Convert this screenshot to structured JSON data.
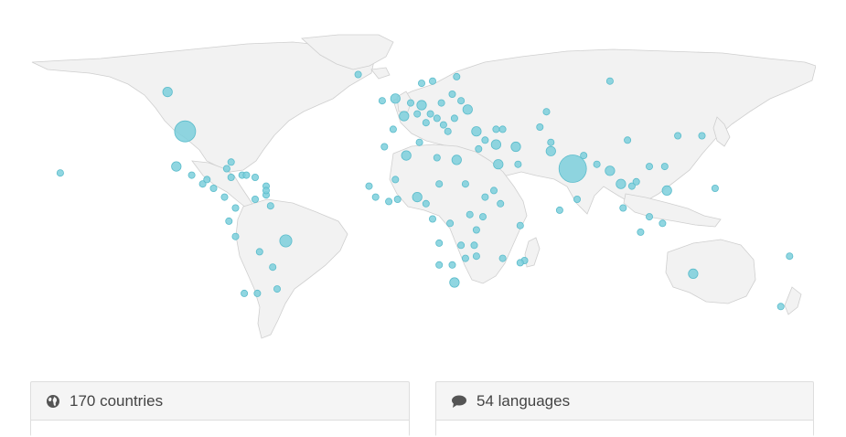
{
  "stats": {
    "countries_label": "170 countries",
    "languages_label": "54 languages"
  },
  "icons": {
    "countries": "globe-icon",
    "languages": "speech-bubble-icon"
  },
  "colors": {
    "marker_fill": "#7ccfdc",
    "marker_stroke": "#5bbccb",
    "land": "#f2f2f2",
    "panel_bg": "#f5f5f5",
    "text": "#444444"
  },
  "map_markers": [
    {
      "lon": -98,
      "lat": 39,
      "size": "xl"
    },
    {
      "lon": 79,
      "lat": 22,
      "size": "xxl"
    },
    {
      "lon": -106,
      "lat": 57,
      "size": "m"
    },
    {
      "lon": -102,
      "lat": 23,
      "size": "m"
    },
    {
      "lon": -52,
      "lat": -11,
      "size": "l"
    },
    {
      "lon": 134,
      "lat": -26,
      "size": "m"
    },
    {
      "lon": 96,
      "lat": 62,
      "size": "s"
    },
    {
      "lon": 26,
      "lat": 26,
      "size": "m"
    },
    {
      "lon": 53,
      "lat": 32,
      "size": "m"
    },
    {
      "lon": 2,
      "lat": 46,
      "size": "m"
    },
    {
      "lon": -3,
      "lat": 40,
      "size": "s"
    },
    {
      "lon": 10,
      "lat": 51,
      "size": "m"
    },
    {
      "lon": 31,
      "lat": 49,
      "size": "m"
    },
    {
      "lon": 19,
      "lat": 52,
      "size": "s"
    },
    {
      "lon": -8,
      "lat": 53,
      "size": "s"
    },
    {
      "lon": -2,
      "lat": 54,
      "size": "m"
    },
    {
      "lon": 15,
      "lat": 62,
      "size": "s"
    },
    {
      "lon": 26,
      "lat": 64,
      "size": "s"
    },
    {
      "lon": 10,
      "lat": 61,
      "size": "s"
    },
    {
      "lon": 12,
      "lat": 43,
      "size": "s"
    },
    {
      "lon": 22,
      "lat": 39,
      "size": "s"
    },
    {
      "lon": 35,
      "lat": 39,
      "size": "m"
    },
    {
      "lon": 25,
      "lat": 45,
      "size": "s"
    },
    {
      "lon": 17,
      "lat": 45,
      "size": "s"
    },
    {
      "lon": 20,
      "lat": 42,
      "size": "s"
    },
    {
      "lon": 44,
      "lat": 33,
      "size": "m"
    },
    {
      "lon": 39,
      "lat": 35,
      "size": "s"
    },
    {
      "lon": 36,
      "lat": 31,
      "size": "s"
    },
    {
      "lon": 45,
      "lat": 24,
      "size": "m"
    },
    {
      "lon": 54,
      "lat": 24,
      "size": "s"
    },
    {
      "lon": 67,
      "lat": 48,
      "size": "s"
    },
    {
      "lon": 64,
      "lat": 41,
      "size": "s"
    },
    {
      "lon": 69,
      "lat": 34,
      "size": "s"
    },
    {
      "lon": 69,
      "lat": 30,
      "size": "m"
    },
    {
      "lon": 84,
      "lat": 28,
      "size": "s"
    },
    {
      "lon": 90,
      "lat": 24,
      "size": "s"
    },
    {
      "lon": 104,
      "lat": 35,
      "size": "s"
    },
    {
      "lon": 127,
      "lat": 37,
      "size": "s"
    },
    {
      "lon": 138,
      "lat": 37,
      "size": "s"
    },
    {
      "lon": 121,
      "lat": 23,
      "size": "s"
    },
    {
      "lon": 96,
      "lat": 21,
      "size": "m"
    },
    {
      "lon": 101,
      "lat": 15,
      "size": "m"
    },
    {
      "lon": 106,
      "lat": 14,
      "size": "s"
    },
    {
      "lon": 108,
      "lat": 16,
      "size": "s"
    },
    {
      "lon": 122,
      "lat": 12,
      "size": "m"
    },
    {
      "lon": 102,
      "lat": 4,
      "size": "s"
    },
    {
      "lon": 114,
      "lat": 0,
      "size": "s"
    },
    {
      "lon": 120,
      "lat": -3,
      "size": "s"
    },
    {
      "lon": 110,
      "lat": -7,
      "size": "s"
    },
    {
      "lon": 114,
      "lat": 23,
      "size": "s"
    },
    {
      "lon": 81,
      "lat": 8,
      "size": "s"
    },
    {
      "lon": 73,
      "lat": 3,
      "size": "s"
    },
    {
      "lon": 174,
      "lat": -41,
      "size": "s"
    },
    {
      "lon": 178,
      "lat": -18,
      "size": "s"
    },
    {
      "lon": 144,
      "lat": 13,
      "size": "s"
    },
    {
      "lon": -155,
      "lat": 20,
      "size": "s"
    },
    {
      "lon": -19,
      "lat": 65,
      "size": "s"
    },
    {
      "lon": -75,
      "lat": 4,
      "size": "s"
    },
    {
      "lon": -66,
      "lat": 8,
      "size": "s"
    },
    {
      "lon": -78,
      "lat": -2,
      "size": "s"
    },
    {
      "lon": -75,
      "lat": -9,
      "size": "s"
    },
    {
      "lon": -64,
      "lat": -16,
      "size": "s"
    },
    {
      "lon": -58,
      "lat": -23,
      "size": "s"
    },
    {
      "lon": -65,
      "lat": -35,
      "size": "s"
    },
    {
      "lon": -71,
      "lat": -35,
      "size": "s"
    },
    {
      "lon": -56,
      "lat": -33,
      "size": "s"
    },
    {
      "lon": -59,
      "lat": 5,
      "size": "s"
    },
    {
      "lon": -90,
      "lat": 15,
      "size": "s"
    },
    {
      "lon": -85,
      "lat": 13,
      "size": "s"
    },
    {
      "lon": -80,
      "lat": 9,
      "size": "s"
    },
    {
      "lon": -88,
      "lat": 17,
      "size": "s"
    },
    {
      "lon": -79,
      "lat": 22,
      "size": "s"
    },
    {
      "lon": -72,
      "lat": 19,
      "size": "s"
    },
    {
      "lon": -70,
      "lat": 19,
      "size": "s"
    },
    {
      "lon": -77,
      "lat": 18,
      "size": "s"
    },
    {
      "lon": -66,
      "lat": 18,
      "size": "s"
    },
    {
      "lon": -61,
      "lat": 14,
      "size": "s"
    },
    {
      "lon": -61,
      "lat": 10,
      "size": "s"
    },
    {
      "lon": -61,
      "lat": 12,
      "size": "s"
    },
    {
      "lon": -77,
      "lat": 25,
      "size": "s"
    },
    {
      "lon": -95,
      "lat": 19,
      "size": "s"
    },
    {
      "lon": 5,
      "lat": 52,
      "size": "s"
    },
    {
      "lon": 14,
      "lat": 47,
      "size": "s"
    },
    {
      "lon": 8,
      "lat": 47,
      "size": "s"
    },
    {
      "lon": 24,
      "lat": 56,
      "size": "s"
    },
    {
      "lon": 28,
      "lat": 53,
      "size": "s"
    },
    {
      "lon": 44,
      "lat": 40,
      "size": "s"
    },
    {
      "lon": 47,
      "lat": 40,
      "size": "s"
    },
    {
      "lon": 9,
      "lat": 34,
      "size": "s"
    },
    {
      "lon": 3,
      "lat": 28,
      "size": "m"
    },
    {
      "lon": -7,
      "lat": 32,
      "size": "s"
    },
    {
      "lon": 17,
      "lat": 27,
      "size": "s"
    },
    {
      "lon": 30,
      "lat": 15,
      "size": "s"
    },
    {
      "lon": 39,
      "lat": 9,
      "size": "s"
    },
    {
      "lon": 46,
      "lat": 6,
      "size": "s"
    },
    {
      "lon": 38,
      "lat": 0,
      "size": "s"
    },
    {
      "lon": 32,
      "lat": 1,
      "size": "s"
    },
    {
      "lon": 35,
      "lat": -6,
      "size": "s"
    },
    {
      "lon": 23,
      "lat": -3,
      "size": "s"
    },
    {
      "lon": 15,
      "lat": -1,
      "size": "s"
    },
    {
      "lon": 12,
      "lat": 6,
      "size": "s"
    },
    {
      "lon": 8,
      "lat": 9,
      "size": "m"
    },
    {
      "lon": -1,
      "lat": 8,
      "size": "s"
    },
    {
      "lon": -5,
      "lat": 7,
      "size": "s"
    },
    {
      "lon": -11,
      "lat": 9,
      "size": "s"
    },
    {
      "lon": -14,
      "lat": 14,
      "size": "s"
    },
    {
      "lon": -2,
      "lat": 17,
      "size": "s"
    },
    {
      "lon": 18,
      "lat": 15,
      "size": "s"
    },
    {
      "lon": 18,
      "lat": -12,
      "size": "s"
    },
    {
      "lon": 28,
      "lat": -13,
      "size": "s"
    },
    {
      "lon": 34,
      "lat": -13,
      "size": "s"
    },
    {
      "lon": 35,
      "lat": -18,
      "size": "s"
    },
    {
      "lon": 30,
      "lat": -19,
      "size": "s"
    },
    {
      "lon": 24,
      "lat": -22,
      "size": "s"
    },
    {
      "lon": 18,
      "lat": -22,
      "size": "s"
    },
    {
      "lon": 25,
      "lat": -30,
      "size": "m"
    },
    {
      "lon": 47,
      "lat": -19,
      "size": "s"
    },
    {
      "lon": 57,
      "lat": -20,
      "size": "s"
    },
    {
      "lon": 55,
      "lat": -21,
      "size": "s"
    },
    {
      "lon": 55,
      "lat": -4,
      "size": "s"
    },
    {
      "lon": 43,
      "lat": 12,
      "size": "s"
    }
  ]
}
